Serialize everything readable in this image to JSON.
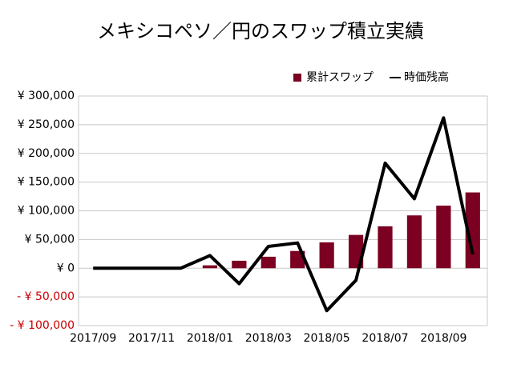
{
  "chart_data": {
    "type": "combo",
    "title": "メキシコペソ／円のスワップ積立実績",
    "categories": [
      "2017/09",
      null,
      "2017/11",
      null,
      "2018/01",
      null,
      "2018/03",
      null,
      "2018/05",
      null,
      "2018/07",
      null,
      "2018/09",
      null
    ],
    "series": [
      {
        "name": "累計スワップ",
        "type": "bar",
        "color": "#7b0021",
        "values": [
          0,
          0,
          0,
          0,
          5000,
          13000,
          20000,
          30000,
          45000,
          58000,
          73000,
          92000,
          109000,
          132000
        ]
      },
      {
        "name": "時価残高",
        "type": "line",
        "color": "#000000",
        "values": [
          0,
          0,
          0,
          0,
          22000,
          -27000,
          38000,
          44000,
          -74000,
          -21000,
          183000,
          121000,
          262000,
          24000
        ]
      }
    ],
    "ylim": [
      -100000,
      300000
    ],
    "yticks": [
      {
        "value": -100000,
        "label": "- ¥ 100,000"
      },
      {
        "value": -50000,
        "label": "- ¥ 50,000"
      },
      {
        "value": 0,
        "label": "¥ 0"
      },
      {
        "value": 50000,
        "label": "¥ 50,000"
      },
      {
        "value": 100000,
        "label": "¥ 100,000"
      },
      {
        "value": 150000,
        "label": "¥ 150,000"
      },
      {
        "value": 200000,
        "label": "¥ 200,000"
      },
      {
        "value": 250000,
        "label": "¥ 250,000"
      },
      {
        "value": 300000,
        "label": "¥ 300,000"
      }
    ],
    "negative_tick_color": "#cc0000",
    "grid": true,
    "legend": "top-right"
  }
}
